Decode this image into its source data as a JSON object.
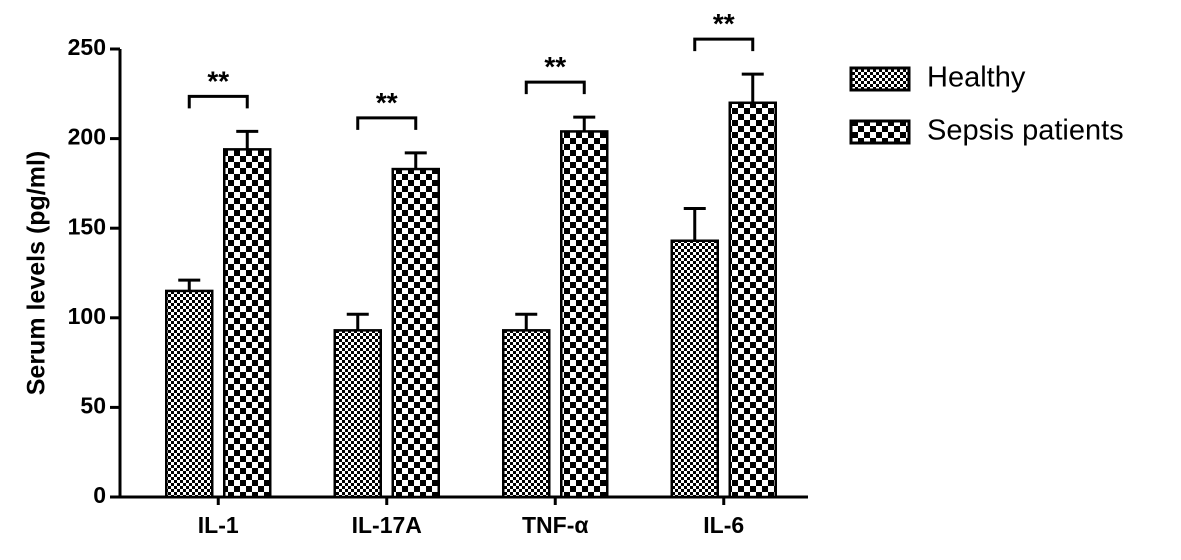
{
  "chart_data": {
    "type": "bar",
    "ylabel": "Serum levels (pg/ml)",
    "categories": [
      "IL-1",
      "IL-17A",
      "TNF-α",
      "IL-6"
    ],
    "series": [
      {
        "name": "Healthy",
        "color": "#000000",
        "hatch": "fine",
        "values": [
          115,
          93,
          93,
          143
        ],
        "errors": [
          6,
          9,
          9,
          18
        ]
      },
      {
        "name": "Sepsis patients",
        "color": "#000000",
        "hatch": "coarse",
        "values": [
          194,
          183,
          204,
          220
        ],
        "errors": [
          10,
          9,
          8,
          16
        ]
      }
    ],
    "significance": [
      "**",
      "**",
      "**",
      "**"
    ],
    "ylim": [
      0,
      250
    ],
    "yticks": [
      0,
      50,
      100,
      150,
      200,
      250
    ],
    "legend": "right"
  }
}
